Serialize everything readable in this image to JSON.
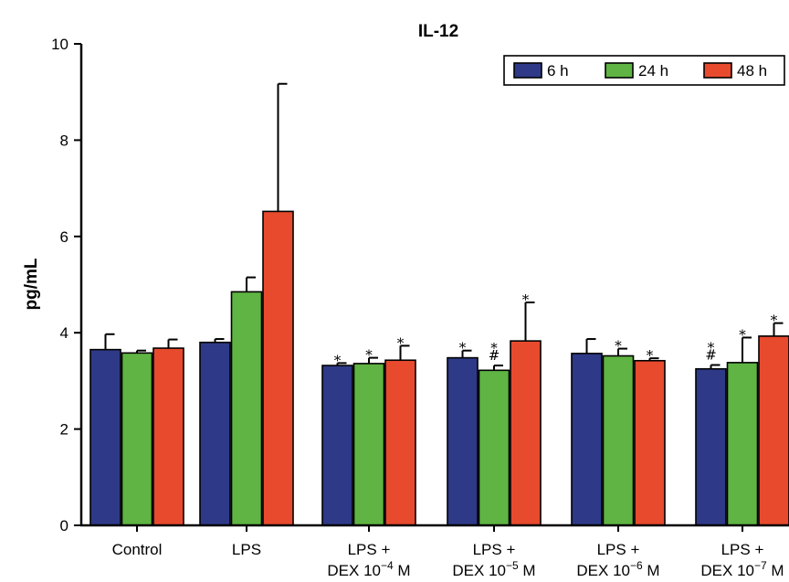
{
  "chart_data": {
    "type": "bar",
    "title": "IL-12",
    "xlabel": "",
    "ylabel": "pg/mL",
    "ylim": [
      0,
      10
    ],
    "yticks": [
      "0",
      "2",
      "4",
      "6",
      "8",
      "10"
    ],
    "grid": false,
    "legend_position": "top-right",
    "categories": [
      {
        "line1": "Control",
        "line2": ""
      },
      {
        "line1": "LPS",
        "line2": ""
      },
      {
        "line1": "LPS +",
        "line2": "DEX 10",
        "exp": "−4",
        "unit": " M"
      },
      {
        "line1": "LPS +",
        "line2": "DEX 10",
        "exp": "−5",
        "unit": " M"
      },
      {
        "line1": "LPS +",
        "line2": "DEX 10",
        "exp": "−6",
        "unit": " M"
      },
      {
        "line1": "LPS +",
        "line2": "DEX 10",
        "exp": "−7",
        "unit": " M"
      }
    ],
    "series": [
      {
        "name": "6 h",
        "color": "#2e3a87",
        "values": [
          3.65,
          3.8,
          3.32,
          3.48,
          3.57,
          3.25
        ],
        "errors": [
          0.32,
          0.07,
          0.05,
          0.15,
          0.3,
          0.08
        ],
        "annotations": [
          "",
          "",
          "*",
          "*",
          "",
          "*\n#"
        ]
      },
      {
        "name": "24 h",
        "color": "#5fb443",
        "values": [
          3.58,
          4.85,
          3.36,
          3.22,
          3.52,
          3.38
        ],
        "errors": [
          0.05,
          0.3,
          0.12,
          0.1,
          0.15,
          0.52
        ],
        "annotations": [
          "",
          "",
          "*",
          "*\n#",
          "*",
          "*"
        ]
      },
      {
        "name": "48 h",
        "color": "#e84a2e",
        "values": [
          3.68,
          6.52,
          3.43,
          3.83,
          3.42,
          3.93
        ],
        "errors": [
          0.18,
          2.65,
          0.3,
          0.8,
          0.05,
          0.27
        ],
        "annotations": [
          "",
          "",
          "*",
          "*",
          "*",
          "*"
        ]
      }
    ]
  }
}
